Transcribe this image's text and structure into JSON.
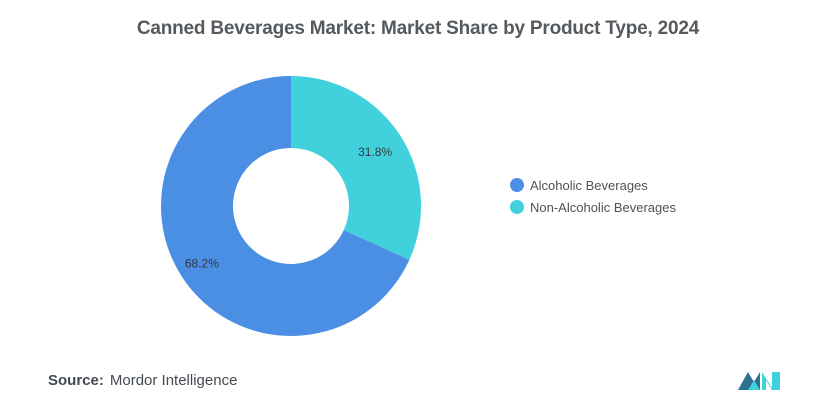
{
  "title": "Canned Beverages Market: Market Share by Product Type, 2024",
  "chart_data": {
    "type": "pie",
    "variant": "donut",
    "title": "Canned Beverages Market: Market Share by Product Type, 2024",
    "categories": [
      "Non-Alcoholic Beverages",
      "Alcoholic Beverages"
    ],
    "values": [
      31.8,
      68.2
    ],
    "labels": [
      "31.8%",
      "68.2%"
    ],
    "colors": [
      "#41d1dc",
      "#4a8fe3"
    ],
    "legend_position": "right"
  },
  "legend": [
    {
      "label": "Alcoholic Beverages",
      "color": "#4a8fe3"
    },
    {
      "label": "Non-Alcoholic Beverages",
      "color": "#41d1dc"
    }
  ],
  "source": {
    "label": "Source:",
    "text": "Mordor Intelligence"
  }
}
